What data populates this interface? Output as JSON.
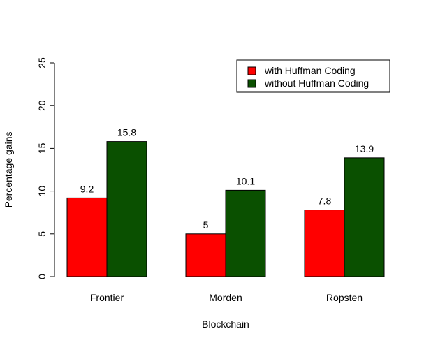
{
  "chart_data": {
    "type": "bar",
    "categories": [
      "Frontier",
      "Morden",
      "Ropsten"
    ],
    "series": [
      {
        "name": "with Huffman Coding",
        "values": [
          9.2,
          5,
          7.8
        ],
        "color": "#ff0000"
      },
      {
        "name": "without Huffman Coding",
        "values": [
          15.8,
          10.1,
          13.9
        ],
        "color": "#0a5000"
      }
    ],
    "data_labels": [
      [
        "9.2",
        "5",
        "7.8"
      ],
      [
        "15.8",
        "10.1",
        "13.9"
      ]
    ],
    "title": "",
    "xlabel": "Blockchain",
    "ylabel": "Percentage gains",
    "ylim": [
      0,
      25
    ],
    "yticks": [
      0,
      5,
      10,
      15,
      20,
      25
    ],
    "grid": false,
    "legend_position": "top-right"
  }
}
